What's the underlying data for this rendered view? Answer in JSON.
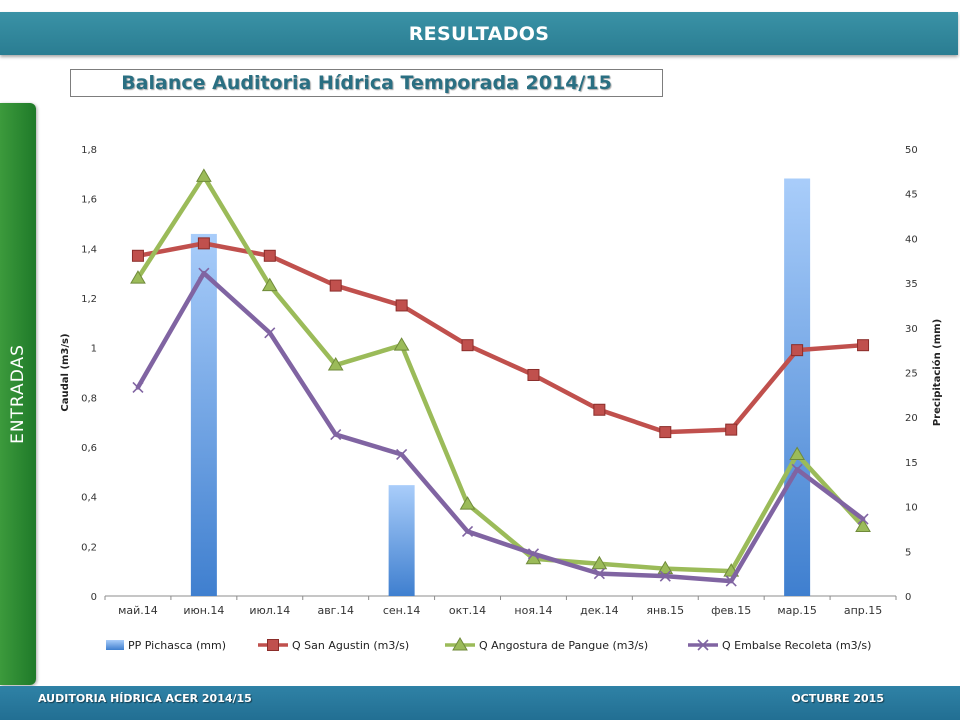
{
  "header": {
    "title": "RESULTADOS"
  },
  "subtitle": "Balance Auditoria Hídrica Temporada 2014/15",
  "side_tab": "ENTRADAS",
  "footer": {
    "left": "AUDITORIA HÍDRICA ACER 2014/15",
    "right": "OCTUBRE 2015"
  },
  "colors": {
    "banner": "#2f889c",
    "side_tab": "#2b8a33",
    "footer": "#2a78a0"
  },
  "chart_data": {
    "type": "bar+line",
    "title": "",
    "categories": [
      "май.14",
      "июн.14",
      "июл.14",
      "авг.14",
      "сен.14",
      "окт.14",
      "ноя.14",
      "дек.14",
      "янв.15",
      "фев.15",
      "мар.15",
      "апр.15"
    ],
    "ylabel": "Caudal (m3/s)",
    "ylabel_right": "Precipitación (mm)",
    "ylim": [
      0,
      1.8
    ],
    "ylim_right": [
      0,
      50
    ],
    "yticks": [
      "0",
      "0,2",
      "0,4",
      "0,6",
      "0,8",
      "1",
      "1,2",
      "1,4",
      "1,6",
      "1,8"
    ],
    "yticks_right": [
      "0",
      "5",
      "10",
      "15",
      "20",
      "25",
      "30",
      "35",
      "40",
      "45",
      "50"
    ],
    "legend_position": "bottom",
    "grid": false,
    "series": [
      {
        "name": "PP Pichasca (mm)",
        "type": "bar",
        "axis": "right",
        "color": "#5b9bd5",
        "values": [
          0,
          40.5,
          0,
          0,
          12.4,
          0,
          0,
          0,
          0,
          0,
          46.7,
          0
        ]
      },
      {
        "name": "Q San Agustin (m3/s)",
        "type": "line",
        "marker": "square",
        "color": "#c0504d",
        "values": [
          1.37,
          1.42,
          1.37,
          1.25,
          1.17,
          1.01,
          0.89,
          0.75,
          0.66,
          0.67,
          0.99,
          1.01
        ]
      },
      {
        "name": "Q Angostura de Pangue (m3/s)",
        "type": "line",
        "marker": "triangle",
        "color": "#9bbb59",
        "values": [
          1.28,
          1.69,
          1.25,
          0.93,
          1.01,
          0.37,
          0.15,
          0.13,
          0.11,
          0.1,
          0.57,
          0.28
        ]
      },
      {
        "name": "Q Embalse Recoleta (m3/s)",
        "type": "line",
        "marker": "x",
        "color": "#8064a2",
        "values": [
          0.84,
          1.3,
          1.06,
          0.65,
          0.57,
          0.26,
          0.17,
          0.09,
          0.08,
          0.06,
          0.51,
          0.31
        ]
      }
    ]
  }
}
